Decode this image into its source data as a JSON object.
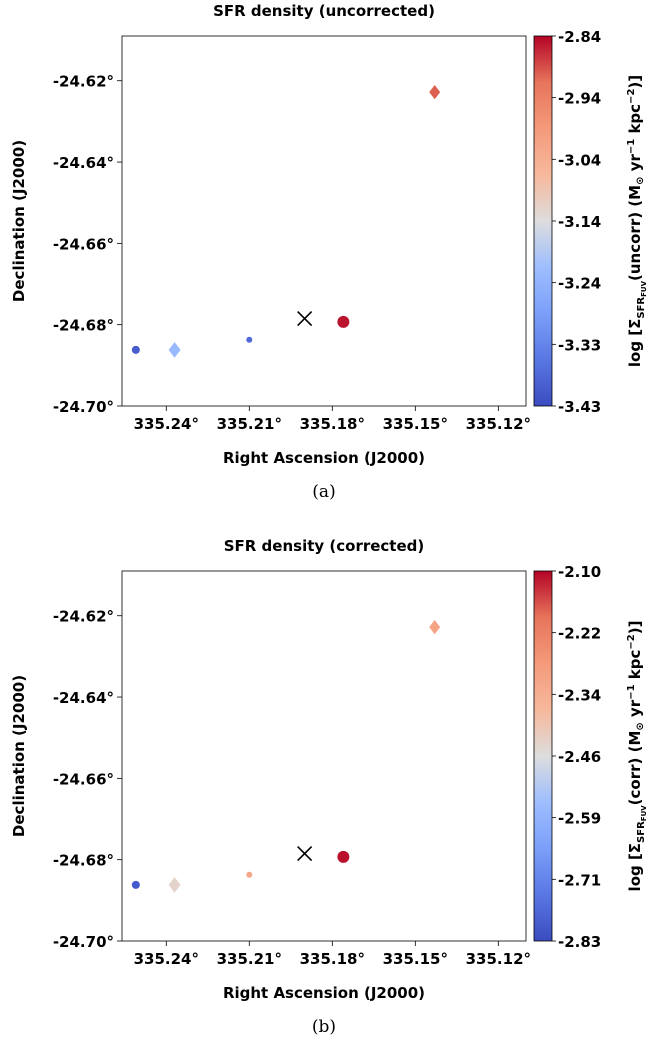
{
  "chart_data": [
    {
      "type": "scatter",
      "title": "SFR density (uncorrected)",
      "xlabel": "Right Ascension (J2000)",
      "ylabel": "Declination (J2000)",
      "x_ticks": [
        "335.24°",
        "335.21°",
        "335.18°",
        "335.15°",
        "335.12°"
      ],
      "x_tick_values": [
        335.24,
        335.21,
        335.18,
        335.15,
        335.12
      ],
      "y_ticks": [
        "-24.62°",
        "-24.64°",
        "-24.66°",
        "-24.68°",
        "-24.70°"
      ],
      "y_tick_values": [
        -24.62,
        -24.64,
        -24.66,
        -24.68,
        -24.7
      ],
      "xlim": [
        335.256,
        335.11
      ],
      "ylim": [
        -24.7,
        -24.609
      ],
      "colorbar": {
        "label_prefix": "log [Σ",
        "label_sub": "SFR",
        "label_subsub": "FUV",
        "label_mid": "(uncorr) (M",
        "label_sun": "⊙",
        "label_units": " yr",
        "label_exp1": "−1",
        "label_kpc": " kpc",
        "label_exp2": "−2",
        "label_end": ")]",
        "ticks": [
          "-2.84",
          "-2.94",
          "-3.04",
          "-3.14",
          "-3.24",
          "-3.33",
          "-3.43"
        ],
        "min": -3.43,
        "max": -2.84,
        "colormap": "coolwarm"
      },
      "points": [
        {
          "x": 335.251,
          "y": -24.6862,
          "value": -3.4,
          "marker": "circle",
          "size": 8
        },
        {
          "x": 335.237,
          "y": -24.6862,
          "value": -3.22,
          "marker": "diamond",
          "size": 12
        },
        {
          "x": 335.21,
          "y": -24.6837,
          "value": -3.38,
          "marker": "circle",
          "size": 6
        },
        {
          "x": 335.176,
          "y": -24.6793,
          "value": -2.85,
          "marker": "circle",
          "size": 12
        },
        {
          "x": 335.143,
          "y": -24.6228,
          "value": -2.9,
          "marker": "diamond",
          "size": 11
        }
      ],
      "center_marker": {
        "x": 335.19,
        "y": -24.6785,
        "marker": "x"
      },
      "caption": "(a)"
    },
    {
      "type": "scatter",
      "title": "SFR density (corrected)",
      "xlabel": "Right Ascension (J2000)",
      "ylabel": "Declination (J2000)",
      "x_ticks": [
        "335.24°",
        "335.21°",
        "335.18°",
        "335.15°",
        "335.12°"
      ],
      "x_tick_values": [
        335.24,
        335.21,
        335.18,
        335.15,
        335.12
      ],
      "y_ticks": [
        "-24.62°",
        "-24.64°",
        "-24.66°",
        "-24.68°",
        "-24.70°"
      ],
      "y_tick_values": [
        -24.62,
        -24.64,
        -24.66,
        -24.68,
        -24.7
      ],
      "xlim": [
        335.256,
        335.11
      ],
      "ylim": [
        -24.7,
        -24.609
      ],
      "colorbar": {
        "label_prefix": "log [Σ",
        "label_sub": "SFR",
        "label_subsub": "FUV",
        "label_mid": "(corr) (M",
        "label_sun": "⊙",
        "label_units": " yr",
        "label_exp1": "−1",
        "label_kpc": " kpc",
        "label_exp2": "−2",
        "label_end": ")]",
        "ticks": [
          "-2.10",
          "-2.22",
          "-2.34",
          "-2.46",
          "-2.59",
          "-2.71",
          "-2.83"
        ],
        "min": -2.83,
        "max": -2.1,
        "colormap": "coolwarm"
      },
      "points": [
        {
          "x": 335.251,
          "y": -24.6862,
          "value": -2.8,
          "marker": "circle",
          "size": 8
        },
        {
          "x": 335.237,
          "y": -24.6862,
          "value": -2.44,
          "marker": "diamond",
          "size": 12
        },
        {
          "x": 335.21,
          "y": -24.6837,
          "value": -2.32,
          "marker": "circle",
          "size": 6
        },
        {
          "x": 335.176,
          "y": -24.6793,
          "value": -2.11,
          "marker": "circle",
          "size": 12
        },
        {
          "x": 335.143,
          "y": -24.6228,
          "value": -2.31,
          "marker": "diamond",
          "size": 11
        }
      ],
      "center_marker": {
        "x": 335.19,
        "y": -24.6785,
        "marker": "x"
      },
      "caption": "(b)"
    }
  ]
}
